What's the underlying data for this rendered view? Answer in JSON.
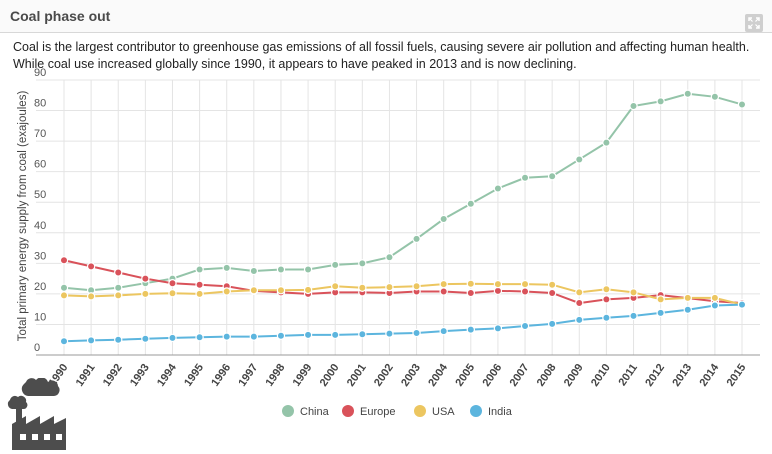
{
  "panel": {
    "title": "Coal phase out",
    "expand_icon": "expand-icon",
    "description": "Coal is the largest contributor to greenhouse gas emissions of all fossil fuels, causing severe air pollution and affecting human health. While coal use increased globally since 1990, it appears to have peaked in 2013 and is now declining.",
    "factory_icon": "factory-icon"
  },
  "chart_data": {
    "type": "line",
    "ylabel": "Total primary energy supply from coal (exajoules)",
    "xlabel": "",
    "ylim": [
      0,
      90
    ],
    "yticks": [
      0,
      10,
      20,
      30,
      40,
      50,
      60,
      70,
      80,
      90
    ],
    "grid": true,
    "legend_position": "bottom-center",
    "x": [
      "1990",
      "1991",
      "1992",
      "1993",
      "1994",
      "1995",
      "1996",
      "1997",
      "1998",
      "1999",
      "2000",
      "2001",
      "2002",
      "2003",
      "2004",
      "2005",
      "2006",
      "2007",
      "2008",
      "2009",
      "2010",
      "2011",
      "2012",
      "2013",
      "2014",
      "2015"
    ],
    "series": [
      {
        "name": "China",
        "color": "#94c4a9",
        "values": [
          22,
          21.2,
          22,
          23.5,
          25,
          28,
          28.5,
          27.5,
          28,
          28,
          29.5,
          30,
          32,
          38,
          44.5,
          49.5,
          54.5,
          58,
          58.5,
          64,
          69.5,
          81.5,
          83,
          85.5,
          84.5,
          82
        ]
      },
      {
        "name": "Europe",
        "color": "#d9525a",
        "values": [
          31,
          29,
          27,
          25,
          23.5,
          23,
          22.5,
          21,
          20.5,
          20,
          20.5,
          20.5,
          20.3,
          20.8,
          20.8,
          20.3,
          21,
          20.8,
          20.3,
          17,
          18.2,
          18.7,
          19.6,
          18.6,
          17.6,
          17
        ]
      },
      {
        "name": "USA",
        "color": "#ecc660",
        "values": [
          19.5,
          19.2,
          19.5,
          20,
          20.2,
          20,
          20.8,
          21.2,
          21.2,
          21.3,
          22.5,
          22,
          22.2,
          22.5,
          23.2,
          23.3,
          23.2,
          23.2,
          23,
          20.5,
          21.5,
          20.5,
          18.2,
          18.7,
          18.7,
          16.5
        ]
      },
      {
        "name": "India",
        "color": "#5cb5de",
        "values": [
          4.5,
          4.8,
          5,
          5.3,
          5.6,
          5.8,
          6,
          6,
          6.3,
          6.6,
          6.6,
          6.8,
          7,
          7.2,
          7.8,
          8.3,
          8.7,
          9.5,
          10.2,
          11.5,
          12.2,
          12.8,
          13.8,
          14.8,
          16.2,
          16.5
        ]
      }
    ]
  }
}
